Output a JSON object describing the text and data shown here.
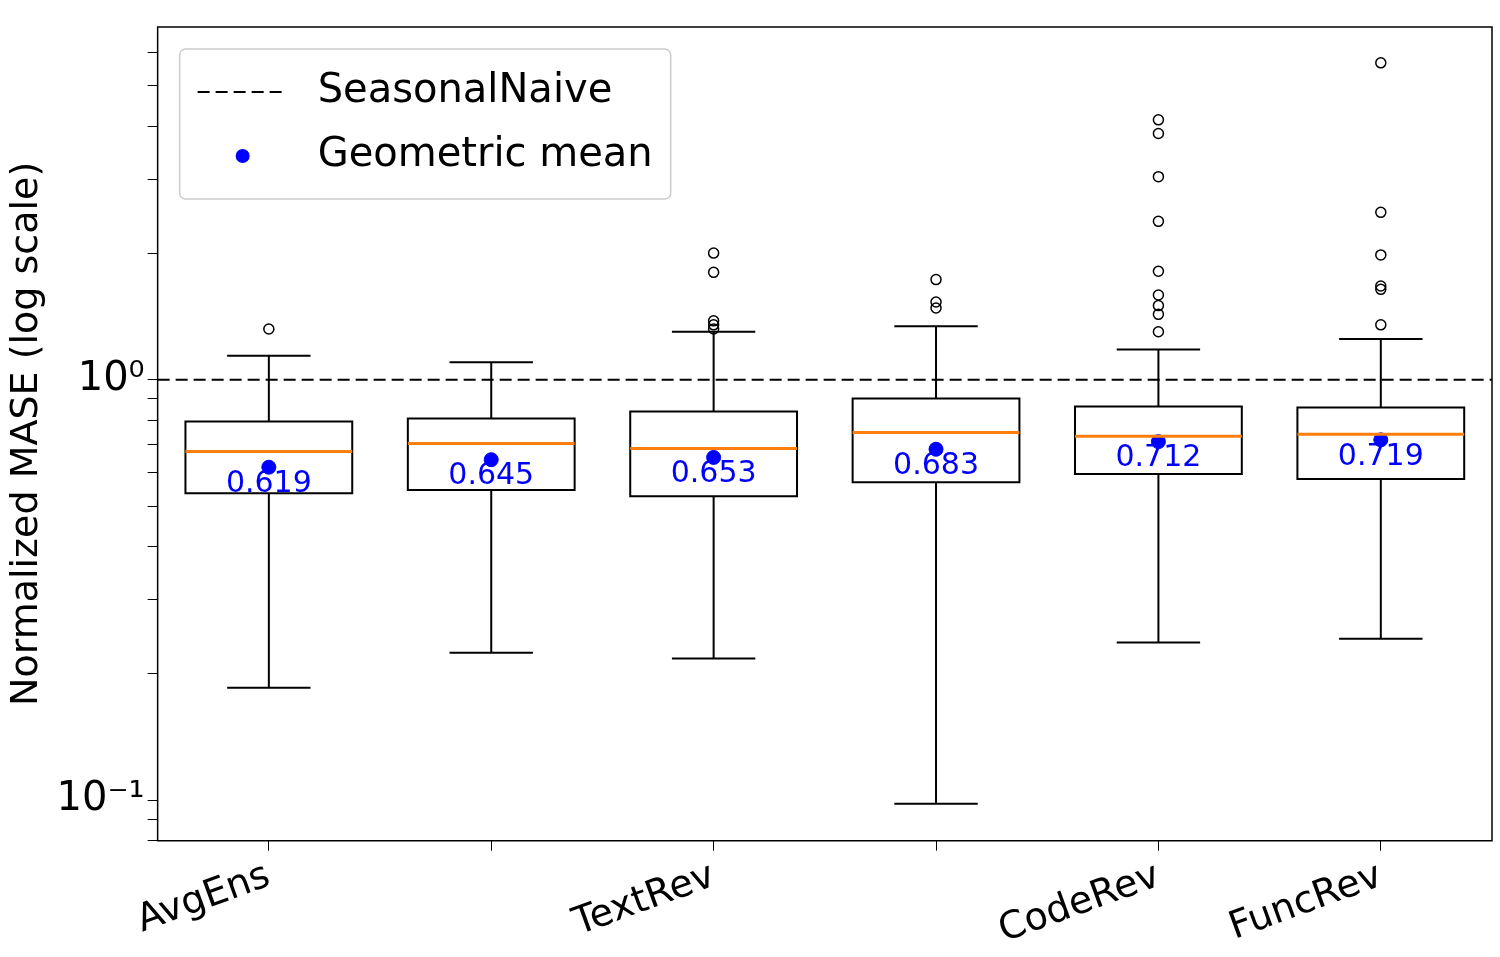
{
  "chart_data": {
    "type": "box",
    "ylabel": "Normalized MASE (log scale)",
    "categories": [
      "AvgEns",
      null,
      "TextRev",
      null,
      "CodeRev",
      "FuncRev"
    ],
    "log": "y",
    "ylim": [
      0.08,
      6.9
    ],
    "yticks": [
      {
        "value": 0.08,
        "label": null
      },
      {
        "value": 0.09,
        "label": null
      },
      {
        "value": 0.1,
        "label": "10⁻¹"
      },
      {
        "value": 0.2,
        "label": null
      },
      {
        "value": 0.3,
        "label": null
      },
      {
        "value": 0.4,
        "label": null
      },
      {
        "value": 0.5,
        "label": null
      },
      {
        "value": 0.6,
        "label": null
      },
      {
        "value": 0.7,
        "label": null
      },
      {
        "value": 0.8,
        "label": null
      },
      {
        "value": 0.9,
        "label": null
      },
      {
        "value": 1,
        "label": "10⁰"
      },
      {
        "value": 2,
        "label": null
      },
      {
        "value": 3,
        "label": null
      },
      {
        "value": 4,
        "label": null
      },
      {
        "value": 5,
        "label": null
      },
      {
        "value": 6,
        "label": null
      }
    ],
    "grid": false,
    "legend": "top left",
    "ref_lines": [
      {
        "axis": "y",
        "value": 1,
        "label": "SeasonalNaive",
        "color": "#000000",
        "line_style": "dashed"
      }
    ],
    "series": [
      {
        "type": "box",
        "color": "#000000",
        "boxes": [
          {
            "low": 0.185,
            "q1": 0.537,
            "median": 0.675,
            "q3": 0.795,
            "high": 1.14,
            "outliers": [
              1.32
            ]
          },
          {
            "low": 0.224,
            "q1": 0.546,
            "median": 0.705,
            "q3": 0.808,
            "high": 1.1
          },
          {
            "low": 0.217,
            "q1": 0.528,
            "median": 0.686,
            "q3": 0.84,
            "high": 1.3,
            "outliers": [
              2.0,
              1.8,
              1.38,
              1.35,
              1.32
            ]
          },
          {
            "low": 0.098,
            "q1": 0.57,
            "median": 0.749,
            "q3": 0.902,
            "high": 1.34,
            "outliers": [
              1.73,
              1.53,
              1.48
            ]
          },
          {
            "low": 0.237,
            "q1": 0.596,
            "median": 0.733,
            "q3": 0.863,
            "high": 1.18,
            "outliers": [
              4.15,
              3.85,
              3.04,
              2.38,
              1.81,
              1.59,
              1.5,
              1.43,
              1.3
            ]
          },
          {
            "low": 0.242,
            "q1": 0.58,
            "median": 0.741,
            "q3": 0.859,
            "high": 1.25,
            "outliers": [
              5.67,
              2.5,
              1.98,
              1.67,
              1.64,
              1.35
            ]
          }
        ]
      },
      {
        "type": "scatter",
        "name": "Geometric mean",
        "color": "#0000ff",
        "marker": "circle",
        "values": [
          0.619,
          0.645,
          0.653,
          0.683,
          0.712,
          0.719
        ],
        "data_labels": true
      }
    ]
  }
}
